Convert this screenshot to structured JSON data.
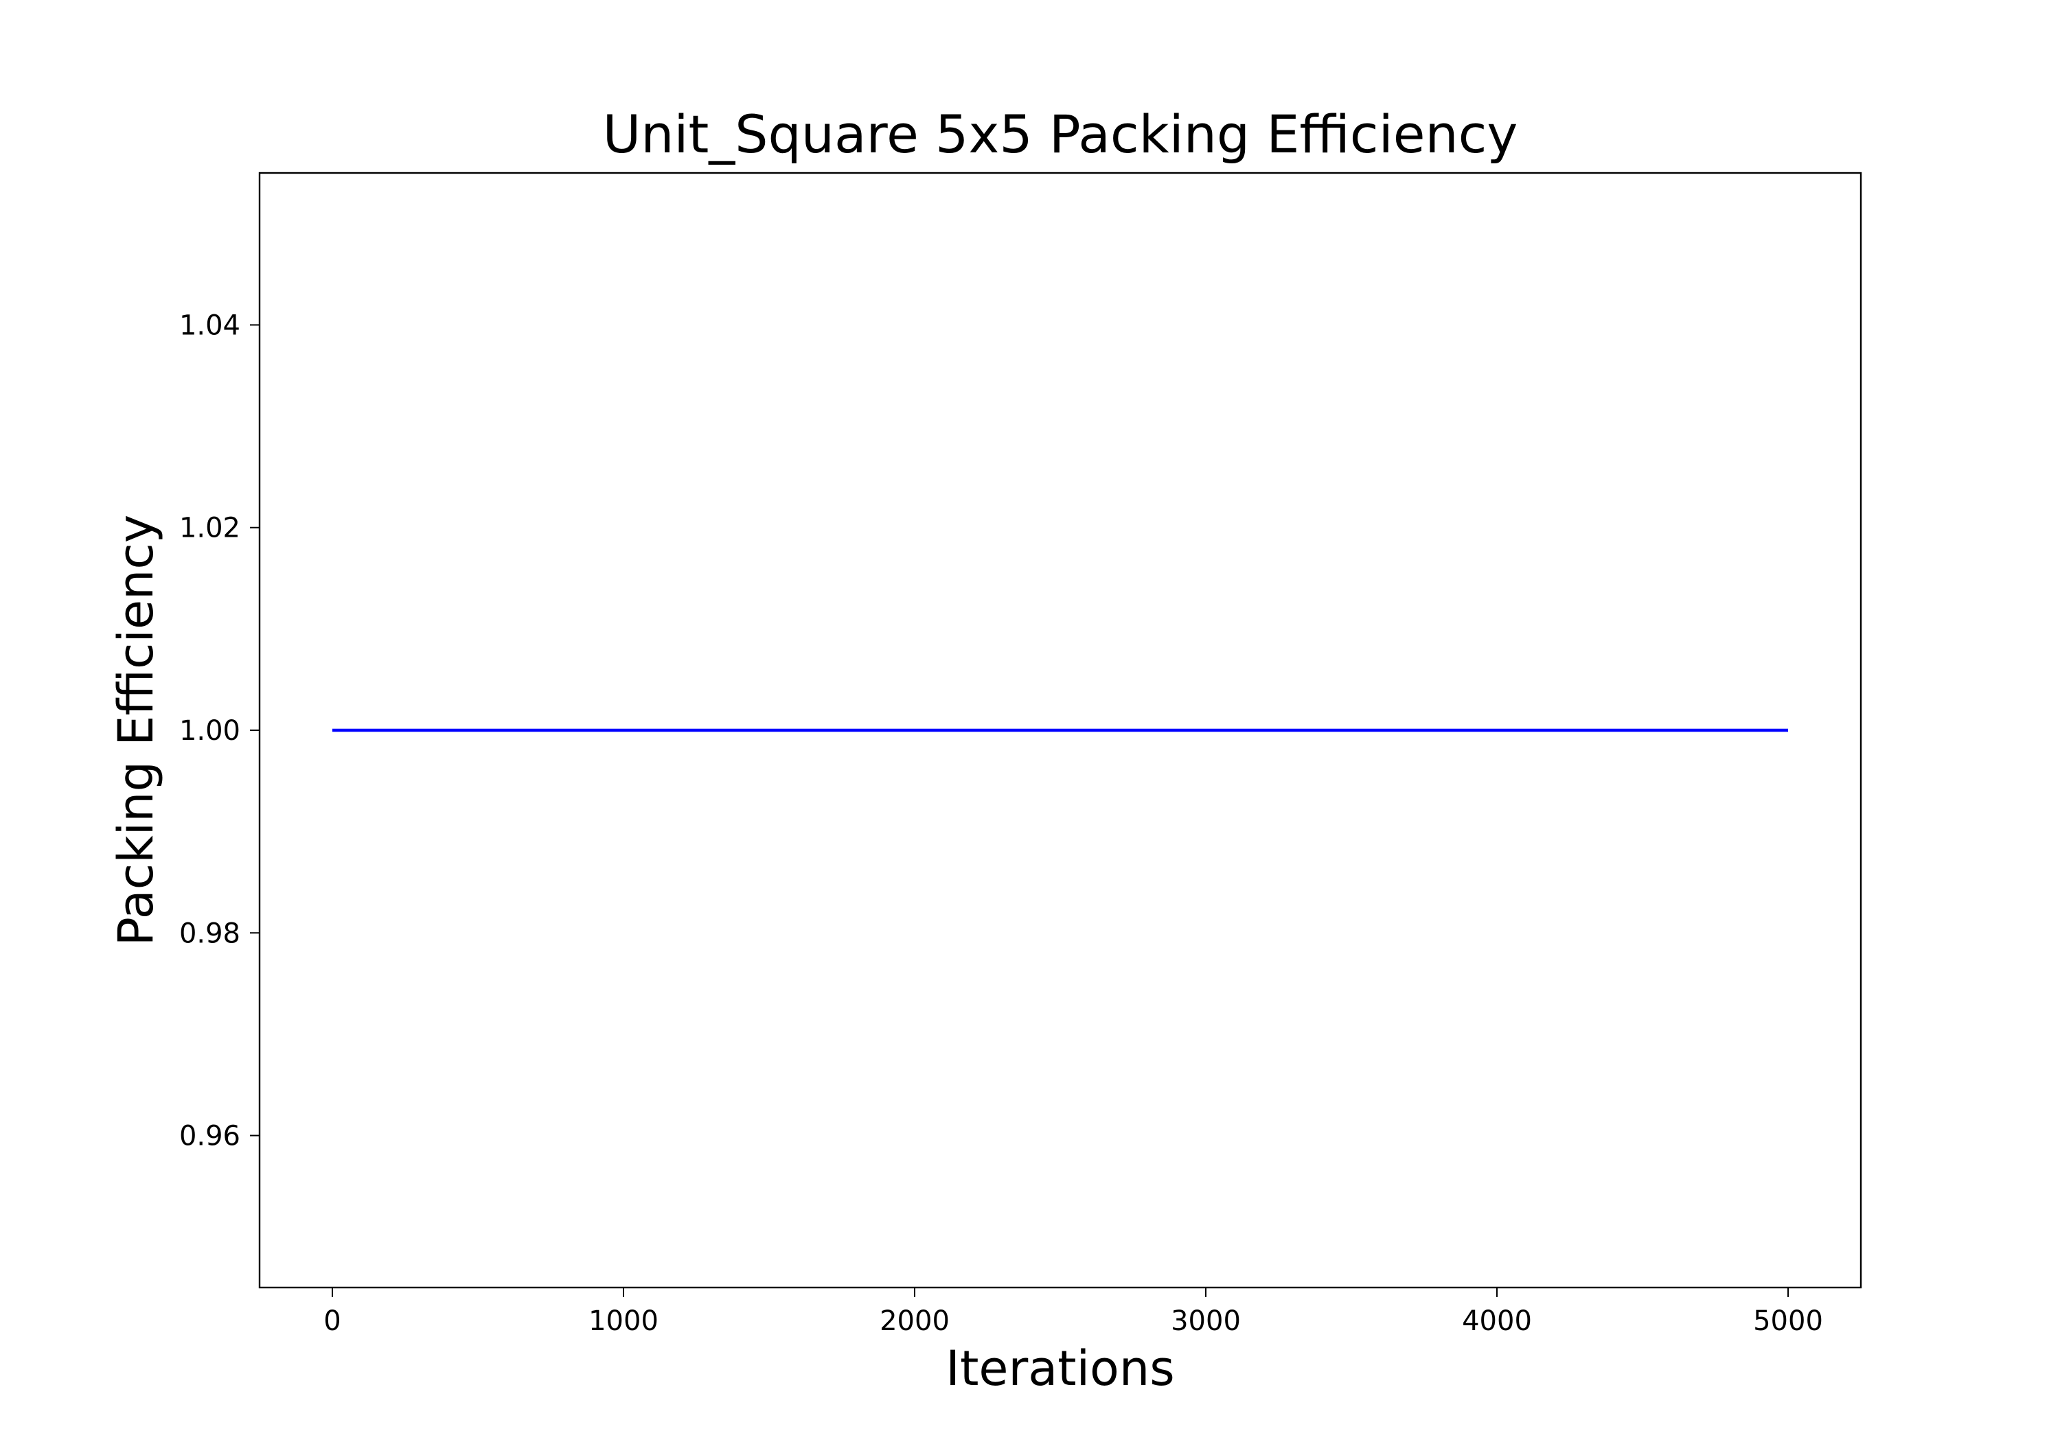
{
  "chart_data": {
    "type": "line",
    "title": "Unit_Square 5x5 Packing Efficiency",
    "xlabel": "Iterations",
    "ylabel": "Packing Efficiency",
    "xlim": [
      -250,
      5250
    ],
    "ylim": [
      0.945,
      1.055
    ],
    "xticks": [
      0,
      1000,
      2000,
      3000,
      4000,
      5000
    ],
    "xtick_labels": [
      "0",
      "1000",
      "2000",
      "3000",
      "4000",
      "5000"
    ],
    "yticks": [
      0.96,
      0.98,
      1.0,
      1.02,
      1.04
    ],
    "ytick_labels": [
      "0.96",
      "0.98",
      "1.00",
      "1.02",
      "1.04"
    ],
    "grid": false,
    "series": [
      {
        "color": "#0000ff",
        "x": [
          0,
          5000
        ],
        "y": [
          1.0,
          1.0
        ]
      }
    ]
  }
}
